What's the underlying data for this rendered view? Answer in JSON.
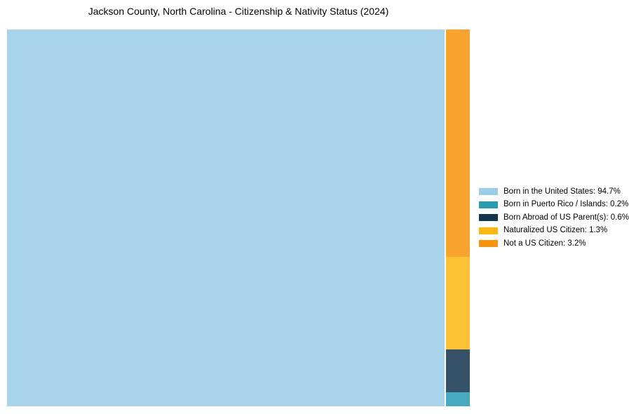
{
  "title": "Jackson County, North Carolina - Citizenship & Nativity Status (2024)",
  "colors": {
    "background": "#ffffff",
    "text": "#000000"
  },
  "chart_data": {
    "type": "treemap",
    "title": "Jackson County, North Carolina - Citizenship & Nativity Status (2024)",
    "unit": "percent",
    "legend_position": "right-center",
    "grid": false,
    "segment_opacity": 0.85,
    "layout_note": "largest item fills left block full height; remaining items stacked top-to-bottom in descending order in right column",
    "items": [
      {
        "label": "Born in the United States",
        "value": 94.7,
        "color": "#99CDE8",
        "legend_label": "Born in the United States: 94.7%"
      },
      {
        "label": "Born in Puerto Rico / Islands",
        "value": 0.2,
        "color": "#279BB6",
        "legend_label": "Born in Puerto Rico / Islands: 0.2%"
      },
      {
        "label": "Born Abroad of US Parent(s)",
        "value": 0.6,
        "color": "#12344E",
        "legend_label": "Born Abroad of US Parent(s): 0.6%"
      },
      {
        "label": "Naturalized US Citizen",
        "value": 1.3,
        "color": "#FDB713",
        "legend_label": "Naturalized US Citizen: 1.3%"
      },
      {
        "label": "Not a US Citizen",
        "value": 3.2,
        "color": "#F8930B",
        "legend_label": "Not a US Citizen: 3.2%"
      }
    ]
  }
}
